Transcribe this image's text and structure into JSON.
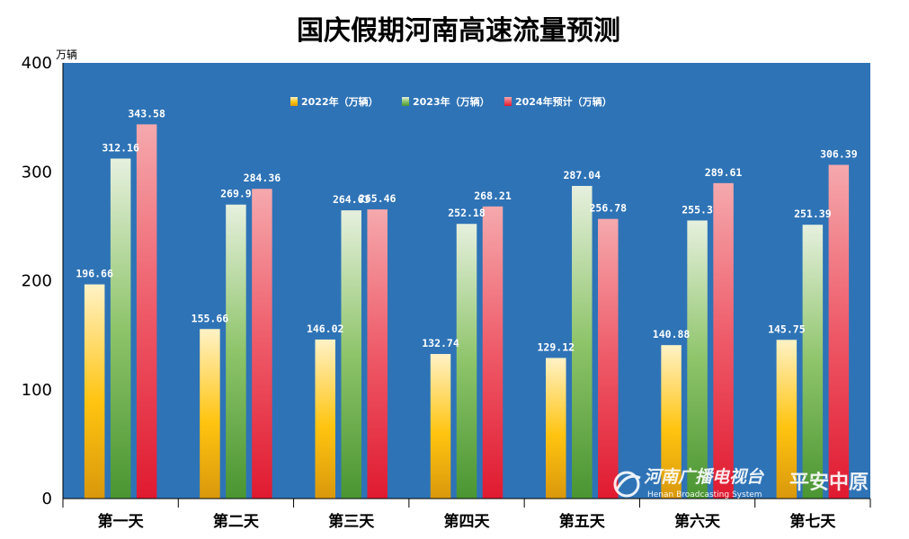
{
  "chart_data": {
    "type": "bar",
    "title": "国庆假期河南高速流量预测",
    "unit_label": "万辆",
    "categories": [
      "第一天",
      "第二天",
      "第三天",
      "第四天",
      "第五天",
      "第六天",
      "第七天"
    ],
    "series": [
      {
        "name": "2022年（万辆）",
        "values": [
          196.66,
          155.66,
          146.02,
          132.74,
          129.12,
          140.88,
          145.75
        ],
        "labels": [
          "196.66",
          "155.66",
          "146.02",
          "132.74",
          "129.12",
          "140.88",
          "145.75"
        ],
        "color": "#f5b800"
      },
      {
        "name": "2023年（万辆）",
        "values": [
          312.16,
          269.9,
          264.63,
          252.18,
          287.04,
          255.3,
          251.39
        ],
        "labels": [
          "312.16",
          "269.9",
          "264.63",
          "252.18",
          "287.04",
          "255.3",
          "251.39"
        ],
        "color": "#6aa83a"
      },
      {
        "name": "2024年预计（万辆）",
        "values": [
          343.58,
          284.36,
          265.46,
          268.21,
          256.78,
          289.61,
          306.39
        ],
        "labels": [
          "343.58",
          "284.36",
          "265.46",
          "268.21",
          "256.78",
          "289.61",
          "306.39"
        ],
        "color": "#e8223c"
      }
    ],
    "ylim": [
      0,
      400
    ],
    "yticks": [
      "0",
      "100",
      "200",
      "300",
      "400"
    ],
    "legend_position": "top-center",
    "plot_background": "#2e73b6",
    "grid": false
  },
  "watermark": {
    "logo_text": "河南广播电视台",
    "english": "Henan Broadcasting System",
    "program": "平安中原"
  }
}
